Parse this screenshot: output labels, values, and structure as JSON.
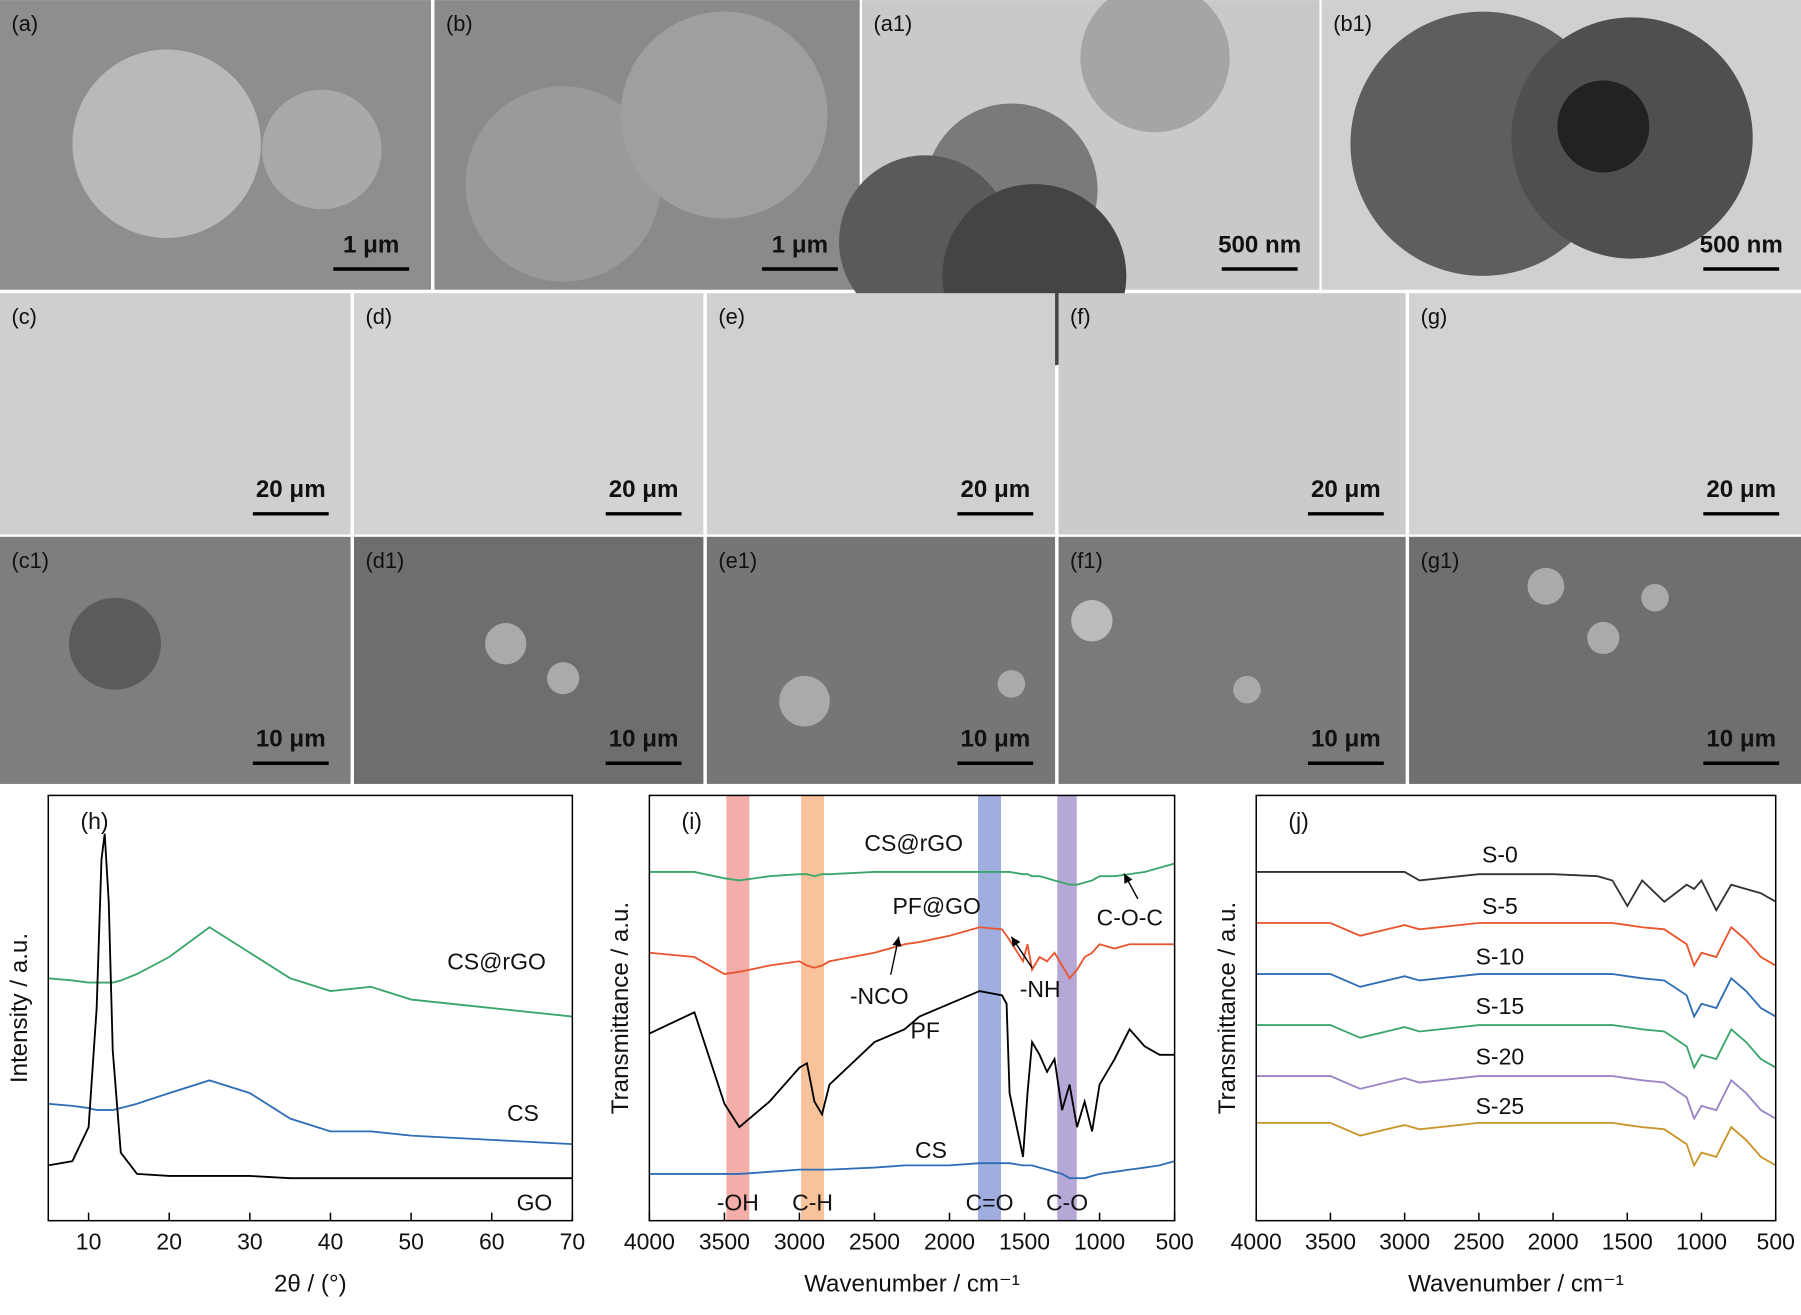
{
  "panels": [
    {
      "label": "(a)",
      "scale": "1 μm"
    },
    {
      "label": "(b)",
      "scale": "1 μm"
    },
    {
      "label": "(a1)",
      "scale": "500 nm"
    },
    {
      "label": "(b1)",
      "scale": "500 nm"
    },
    {
      "label": "(c)",
      "scale": "20 μm"
    },
    {
      "label": "(d)",
      "scale": "20 μm"
    },
    {
      "label": "(e)",
      "scale": "20 μm"
    },
    {
      "label": "(f)",
      "scale": "20 μm"
    },
    {
      "label": "(g)",
      "scale": "20 μm"
    },
    {
      "label": "(c1)",
      "scale": "10 μm"
    },
    {
      "label": "(d1)",
      "scale": "10 μm"
    },
    {
      "label": "(e1)",
      "scale": "10 μm"
    },
    {
      "label": "(f1)",
      "scale": "10 μm"
    },
    {
      "label": "(g1)",
      "scale": "10 μm"
    }
  ],
  "chart_data": [
    {
      "type": "line",
      "panel_label": "(h)",
      "x_label": "2θ / (°)",
      "y_label": "Intensity / a.u.",
      "xlim": [
        5,
        70
      ],
      "xticks": [
        10,
        20,
        30,
        40,
        50,
        60,
        70
      ],
      "ylim": [
        0,
        10
      ],
      "x": [
        5,
        8,
        10,
        11,
        11.6,
        12,
        12.5,
        13,
        14,
        16,
        20,
        25,
        30,
        35,
        40,
        45,
        50,
        60,
        70
      ],
      "series": [
        {
          "name": "CS@rGO",
          "color": "#3aa66a",
          "values": [
            5.7,
            5.65,
            5.6,
            5.6,
            5.6,
            5.6,
            5.6,
            5.6,
            5.65,
            5.8,
            6.2,
            6.9,
            6.3,
            5.7,
            5.4,
            5.5,
            5.2,
            5.0,
            4.8
          ]
        },
        {
          "name": "CS",
          "color": "#2f6db5",
          "values": [
            2.75,
            2.7,
            2.65,
            2.6,
            2.6,
            2.6,
            2.6,
            2.6,
            2.65,
            2.75,
            3.0,
            3.3,
            3.0,
            2.4,
            2.1,
            2.1,
            2.0,
            1.9,
            1.8
          ]
        },
        {
          "name": "GO",
          "color": "#000000",
          "values": [
            1.3,
            1.4,
            2.2,
            5,
            8.5,
            9.1,
            7.5,
            4,
            1.6,
            1.1,
            1.05,
            1.05,
            1.05,
            1.0,
            1.0,
            1.0,
            1.0,
            1.0,
            1.0
          ]
        }
      ]
    },
    {
      "type": "line",
      "panel_label": "(i)",
      "x_label": "Wavenumber / cm⁻¹",
      "y_label": "Transmittance / a.u.",
      "xlim": [
        4000,
        500
      ],
      "xticks": [
        4000,
        3500,
        3000,
        2500,
        2000,
        1500,
        1000,
        500
      ],
      "ylim": [
        0,
        10
      ],
      "bands": [
        {
          "label": "-OH",
          "range": [
            3487,
            3334
          ],
          "color": "#f2a09a"
        },
        {
          "label": "C-H",
          "range": [
            2989,
            2836
          ],
          "color": "#f7b98a"
        },
        {
          "label": "C=O",
          "range": [
            1810,
            1657
          ],
          "color": "#8e9fd9"
        },
        {
          "label": "C-O",
          "range": [
            1282,
            1152
          ],
          "color": "#a999cf"
        }
      ],
      "annotations": [
        "-NCO",
        "-NH",
        "C-O-C"
      ],
      "x": [
        4000,
        3700,
        3500,
        3400,
        3200,
        3000,
        2950,
        2900,
        2850,
        2800,
        2500,
        2300,
        2200,
        2000,
        1800,
        1650,
        1620,
        1600,
        1510,
        1480,
        1450,
        1400,
        1350,
        1300,
        1250,
        1200,
        1150,
        1100,
        1050,
        1000,
        900,
        800,
        700,
        600,
        500
      ],
      "series": [
        {
          "name": "CS@rGO",
          "color": "#3aa66a",
          "values": [
            8.2,
            8.2,
            8.05,
            8.0,
            8.1,
            8.15,
            8.15,
            8.1,
            8.15,
            8.15,
            8.2,
            8.2,
            8.2,
            8.2,
            8.2,
            8.2,
            8.2,
            8.2,
            8.15,
            8.15,
            8.1,
            8.1,
            8.05,
            8.0,
            7.95,
            7.9,
            7.9,
            7.95,
            8.0,
            8.1,
            8.1,
            8.15,
            8.2,
            8.3,
            8.4
          ]
        },
        {
          "name": "PF@GO",
          "color": "#e8552e",
          "values": [
            6.3,
            6.2,
            5.8,
            5.85,
            6.0,
            6.1,
            6.0,
            5.95,
            6.0,
            6.1,
            6.3,
            6.5,
            6.55,
            6.7,
            6.9,
            6.85,
            6.7,
            6.6,
            6.1,
            6.5,
            5.9,
            6.2,
            6.1,
            6.3,
            6.0,
            5.7,
            5.9,
            6.2,
            6.3,
            6.5,
            6.4,
            6.5,
            6.5,
            6.5,
            6.5
          ]
        },
        {
          "name": "PF",
          "color": "#000000",
          "values": [
            4.4,
            4.9,
            2.75,
            2.2,
            2.8,
            3.6,
            3.7,
            2.8,
            2.5,
            3.2,
            4.2,
            4.5,
            4.8,
            5.1,
            5.4,
            5.3,
            5.1,
            3.0,
            1.5,
            3.0,
            4.2,
            3.9,
            3.5,
            3.8,
            2.6,
            3.2,
            2.2,
            2.8,
            2.1,
            3.2,
            3.8,
            4.5,
            4.1,
            3.9,
            3.9
          ]
        },
        {
          "name": "CS",
          "color": "#2f6db5",
          "values": [
            1.1,
            1.1,
            1.1,
            1.1,
            1.15,
            1.2,
            1.2,
            1.2,
            1.2,
            1.2,
            1.25,
            1.3,
            1.3,
            1.3,
            1.35,
            1.35,
            1.35,
            1.35,
            1.3,
            1.3,
            1.3,
            1.25,
            1.2,
            1.15,
            1.1,
            1.0,
            1.0,
            1.0,
            1.05,
            1.1,
            1.15,
            1.2,
            1.25,
            1.3,
            1.4
          ]
        }
      ]
    },
    {
      "type": "line",
      "panel_label": "(j)",
      "x_label": "Wavenumber / cm⁻¹",
      "y_label": "Transmittance / a.u.",
      "xlim": [
        4000,
        500
      ],
      "xticks": [
        4000,
        3500,
        3000,
        2500,
        2000,
        1500,
        1000,
        500
      ],
      "ylim": [
        0,
        10
      ],
      "x": [
        4000,
        3500,
        3300,
        3000,
        2900,
        2500,
        2000,
        1700,
        1600,
        1500,
        1400,
        1250,
        1100,
        1050,
        1000,
        900,
        800,
        700,
        600,
        500
      ],
      "series": [
        {
          "name": "S-0",
          "color": "#333333",
          "values": [
            8.2,
            8.2,
            8.2,
            8.2,
            8.0,
            8.15,
            8.15,
            8.1,
            8.0,
            7.4,
            8.0,
            7.5,
            7.9,
            7.8,
            8.0,
            7.3,
            7.9,
            7.8,
            7.7,
            7.5
          ]
        },
        {
          "name": "S-5",
          "color": "#e8552e",
          "values": [
            7.0,
            7.0,
            6.7,
            6.95,
            6.85,
            7.0,
            7.0,
            7.0,
            7.0,
            6.95,
            6.9,
            6.85,
            6.5,
            6.0,
            6.3,
            6.2,
            6.9,
            6.6,
            6.2,
            6.0
          ]
        },
        {
          "name": "S-10",
          "color": "#2f6db5",
          "values": [
            5.8,
            5.8,
            5.5,
            5.75,
            5.65,
            5.8,
            5.8,
            5.8,
            5.8,
            5.75,
            5.7,
            5.65,
            5.3,
            4.8,
            5.1,
            5.0,
            5.7,
            5.4,
            5.0,
            4.8
          ]
        },
        {
          "name": "S-15",
          "color": "#3aa66a",
          "values": [
            4.6,
            4.6,
            4.3,
            4.55,
            4.45,
            4.6,
            4.6,
            4.6,
            4.6,
            4.55,
            4.5,
            4.45,
            4.1,
            3.6,
            3.9,
            3.8,
            4.5,
            4.2,
            3.8,
            3.6
          ]
        },
        {
          "name": "S-20",
          "color": "#9b83c4",
          "values": [
            3.4,
            3.4,
            3.1,
            3.35,
            3.25,
            3.4,
            3.4,
            3.4,
            3.4,
            3.35,
            3.3,
            3.25,
            2.9,
            2.4,
            2.7,
            2.6,
            3.3,
            3.0,
            2.6,
            2.4
          ]
        },
        {
          "name": "S-25",
          "color": "#c9952b",
          "values": [
            2.3,
            2.3,
            2.0,
            2.25,
            2.15,
            2.3,
            2.3,
            2.3,
            2.3,
            2.25,
            2.2,
            2.15,
            1.8,
            1.3,
            1.6,
            1.5,
            2.2,
            1.9,
            1.5,
            1.3
          ]
        }
      ]
    }
  ]
}
